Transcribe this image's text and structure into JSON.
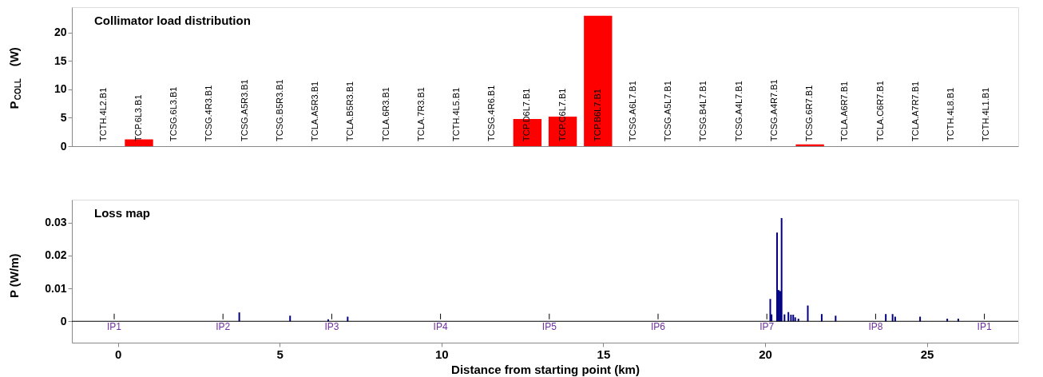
{
  "chart_data": [
    {
      "type": "bar",
      "title": "Collimator load distribution",
      "ylabel": "P$_{COLL}$ (W)",
      "categories": [
        "TCTH.4L2.B1",
        "TCP.6L3.B1",
        "TCSG.6L3.B1",
        "TCSG.4R3.B1",
        "TCSG.A5R3.B1",
        "TCSG.B5R3.B1",
        "TCLA.A5R3.B1",
        "TCLA.B5R3.B1",
        "TCLA.6R3.B1",
        "TCLA.7R3.B1",
        "TCTH.4L5.B1",
        "TCSG.4R6.B1",
        "TCP.D6L7.B1",
        "TCP.C6L7.B1",
        "TCP.B6L7.B1",
        "TCSG.A6L7.B1",
        "TCSG.A5L7.B1",
        "TCSG.B4L7.B1",
        "TCSG.A4L7.B1",
        "TCSG.A4R7.B1",
        "TCSG.6R7.B1",
        "TCLA.A6R7.B1",
        "TCLA.C6R7.B1",
        "TCLA.A7R7.B1",
        "TCTH.4L8.B1",
        "TCTH.4L1.B1"
      ],
      "values": [
        0,
        1.2,
        0,
        0,
        0,
        0,
        0,
        0,
        0,
        0,
        0,
        0,
        4.8,
        5.2,
        23,
        0,
        0,
        0,
        0,
        0,
        0.3,
        0,
        0,
        0,
        0,
        0
      ],
      "color": "#ff0000",
      "ylim": [
        0,
        24.5
      ],
      "yticks": [
        0,
        5,
        10,
        15,
        20
      ],
      "grid": false
    },
    {
      "type": "bar",
      "title": "Loss map",
      "xlabel": "Distance from starting point (km)",
      "ylabel": "P (W/m)",
      "x": [
        3.75,
        5.32,
        6.5,
        7.1,
        20.16,
        20.2,
        20.37,
        20.42,
        20.47,
        20.51,
        20.6,
        20.72,
        20.8,
        20.87,
        20.93,
        21.03,
        21.32,
        21.75,
        22.18,
        23.73,
        23.94,
        24.02,
        24.79,
        25.63,
        25.97
      ],
      "values": [
        0.0027,
        0.0017,
        0.0006,
        0.0014,
        0.0068,
        0.0021,
        0.027,
        0.0095,
        0.0092,
        0.0314,
        0.0021,
        0.0028,
        0.002,
        0.002,
        0.0012,
        0.0008,
        0.0048,
        0.0022,
        0.0017,
        0.0022,
        0.0022,
        0.0014,
        0.0014,
        0.0008,
        0.0008
      ],
      "color": "#000080",
      "xlim": [
        -1.3,
        27.7
      ],
      "xticks": [
        0,
        5,
        10,
        15,
        20,
        25
      ],
      "ylim": [
        -0.0065,
        0.037
      ],
      "yticks": [
        0,
        0.01,
        0.02,
        0.03
      ],
      "grid": false,
      "ref_lines": [
        {
          "axis": "y",
          "value": 0
        }
      ],
      "annotations": [
        "IP1",
        "IP2",
        "IP3",
        "IP4",
        "IP5",
        "IP6",
        "IP7",
        "IP8",
        "IP1"
      ]
    }
  ]
}
